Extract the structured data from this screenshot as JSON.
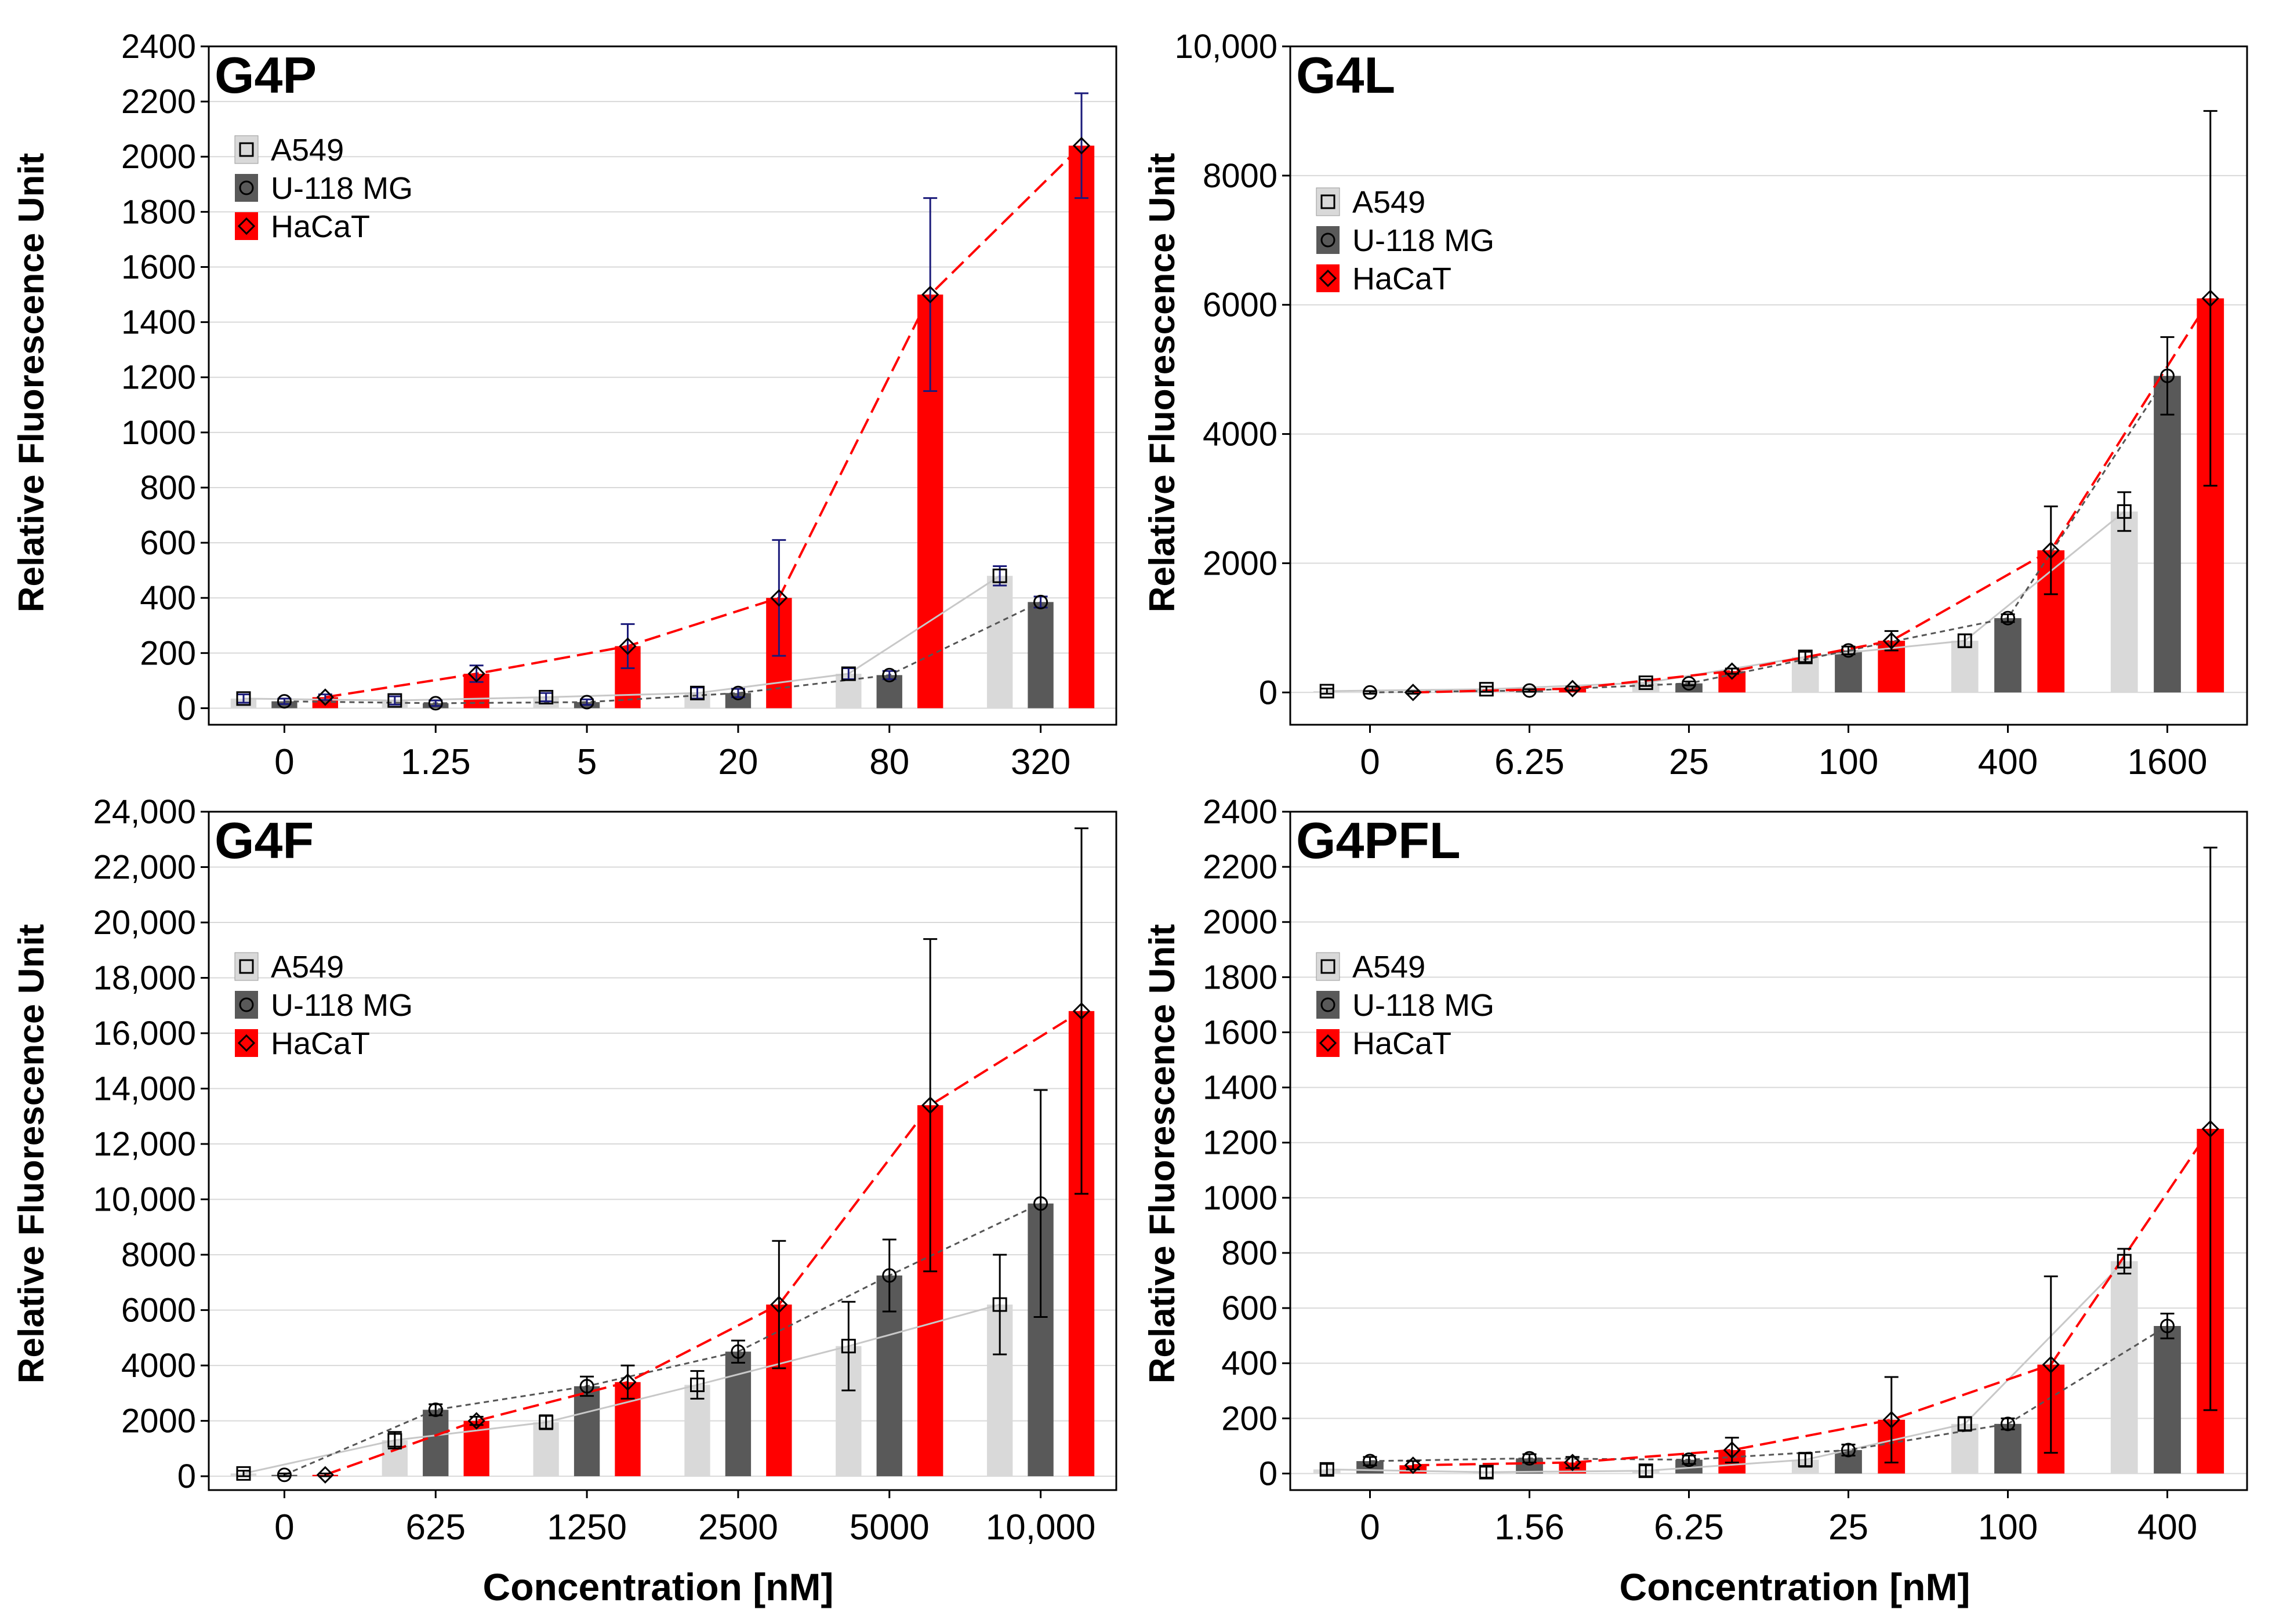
{
  "figure": {
    "ylabel": "Relative Fluorescence Unit",
    "xlabel": "Concentration [nM]",
    "legend": [
      "A549",
      "U-118 MG",
      "HaCaT"
    ],
    "colors": {
      "A549": "#d9d9d9",
      "U-118 MG": "#595959",
      "HaCaT": "#ff0000",
      "grid": "#d9d9d9",
      "errbar_p": "#1a1a7a",
      "errbar": "#000000"
    }
  },
  "chart_data": [
    {
      "type": "bar",
      "title": "G4P",
      "xlabel": "",
      "ylabel": "Relative Fluorescence Unit",
      "ylim": [
        -60,
        2400
      ],
      "yticks": [
        0,
        200,
        400,
        600,
        800,
        1000,
        1200,
        1400,
        1600,
        1800,
        2000,
        2200,
        2400
      ],
      "ytick_labels": [
        "0",
        "200",
        "400",
        "600",
        "800",
        "1000",
        "1200",
        "1400",
        "1600",
        "1800",
        "2000",
        "2200",
        "2400"
      ],
      "categories": [
        "0",
        "1.25",
        "5",
        "20",
        "80",
        "320"
      ],
      "legend": [
        "A549",
        "U-118 MG",
        "HaCaT"
      ],
      "series": [
        {
          "name": "A549",
          "values": [
            35,
            28,
            40,
            55,
            125,
            480
          ],
          "errors": [
            15,
            15,
            15,
            20,
            20,
            35
          ]
        },
        {
          "name": "U-118 MG",
          "values": [
            25,
            18,
            22,
            55,
            120,
            385
          ],
          "errors": [
            10,
            10,
            10,
            15,
            15,
            20
          ]
        },
        {
          "name": "HaCaT",
          "values": [
            40,
            125,
            225,
            400,
            1500,
            2040
          ],
          "errors": [
            10,
            30,
            80,
            210,
            350,
            190
          ]
        }
      ]
    },
    {
      "type": "bar",
      "title": "G4L",
      "xlabel": "",
      "ylabel": "Relative Fluorescence Unit",
      "ylim": [
        -500,
        10000
      ],
      "yticks": [
        0,
        2000,
        4000,
        6000,
        8000,
        10000
      ],
      "ytick_labels": [
        "0",
        "2000",
        "4000",
        "6000",
        "8000",
        "10,000"
      ],
      "categories": [
        "0",
        "6.25",
        "25",
        "100",
        "400",
        "1600"
      ],
      "legend": [
        "A549",
        "U-118 MG",
        "HaCaT"
      ],
      "series": [
        {
          "name": "A549",
          "values": [
            20,
            50,
            150,
            550,
            800,
            2800
          ],
          "errors": [
            40,
            40,
            50,
            80,
            100,
            300
          ]
        },
        {
          "name": "U-118 MG",
          "values": [
            0,
            30,
            140,
            650,
            1150,
            4900
          ],
          "errors": [
            20,
            20,
            30,
            60,
            60,
            600
          ]
        },
        {
          "name": "HaCaT",
          "values": [
            0,
            60,
            330,
            800,
            2200,
            6100
          ],
          "errors": [
            20,
            30,
            40,
            150,
            680,
            2900
          ]
        }
      ]
    },
    {
      "type": "bar",
      "title": "G4F",
      "xlabel": "Concentration [nM]",
      "ylabel": "Relative Fluorescence Unit",
      "ylim": [
        -500,
        24000
      ],
      "yticks": [
        0,
        2000,
        4000,
        6000,
        8000,
        10000,
        12000,
        14000,
        16000,
        18000,
        20000,
        22000,
        24000
      ],
      "ytick_labels": [
        "0",
        "2000",
        "4000",
        "6000",
        "8000",
        "10,000",
        "12,000",
        "14,000",
        "16,000",
        "18,000",
        "20,000",
        "22,000",
        "24,000"
      ],
      "categories": [
        "0",
        "625",
        "1250",
        "2500",
        "5000",
        "10,000"
      ],
      "legend": [
        "A549",
        "U-118 MG",
        "HaCaT"
      ],
      "series": [
        {
          "name": "A549",
          "values": [
            100,
            1300,
            1950,
            3300,
            4700,
            6200
          ],
          "errors": [
            100,
            300,
            250,
            500,
            1600,
            1800
          ]
        },
        {
          "name": "U-118 MG",
          "values": [
            50,
            2400,
            3250,
            4500,
            7250,
            9850
          ],
          "errors": [
            50,
            200,
            350,
            400,
            1300,
            4100
          ]
        },
        {
          "name": "HaCaT",
          "values": [
            50,
            2000,
            3400,
            6200,
            13400,
            16800
          ],
          "errors": [
            50,
            150,
            600,
            2300,
            6000,
            6600
          ]
        }
      ]
    },
    {
      "type": "bar",
      "title": "G4PFL",
      "xlabel": "Concentration [nM]",
      "ylabel": "Relative Fluorescence Unit",
      "ylim": [
        -60,
        2400
      ],
      "yticks": [
        0,
        200,
        400,
        600,
        800,
        1000,
        1200,
        1400,
        1600,
        1800,
        2000,
        2200,
        2400
      ],
      "ytick_labels": [
        "0",
        "200",
        "400",
        "600",
        "800",
        "1000",
        "1200",
        "1400",
        "1600",
        "1800",
        "2000",
        "2200",
        "2400"
      ],
      "categories": [
        "0",
        "1.56",
        "6.25",
        "25",
        "100",
        "400"
      ],
      "legend": [
        "A549",
        "U-118 MG",
        "HaCaT"
      ],
      "series": [
        {
          "name": "A549",
          "values": [
            15,
            5,
            10,
            50,
            180,
            770
          ],
          "errors": [
            20,
            20,
            20,
            25,
            25,
            45
          ]
        },
        {
          "name": "U-118 MG",
          "values": [
            45,
            55,
            50,
            85,
            180,
            535
          ],
          "errors": [
            15,
            15,
            15,
            20,
            20,
            45
          ]
        },
        {
          "name": "HaCaT",
          "values": [
            30,
            40,
            85,
            195,
            395,
            1250
          ],
          "errors": [
            15,
            20,
            45,
            155,
            320,
            1020
          ]
        }
      ]
    }
  ]
}
